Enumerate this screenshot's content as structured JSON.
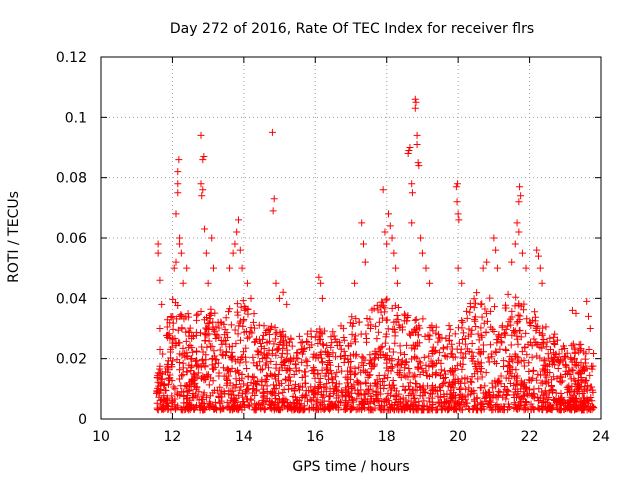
{
  "chart_data": {
    "type": "scatter",
    "title": "Day 272 of 2016, Rate Of TEC Index for receiver flrs",
    "xlabel": "GPS time / hours",
    "ylabel": "ROTI / TECUs",
    "xlim": [
      10,
      24
    ],
    "ylim": [
      0,
      0.12
    ],
    "x_ticks": [
      10,
      12,
      14,
      16,
      18,
      20,
      22,
      24
    ],
    "y_ticks": [
      0,
      0.02,
      0.04,
      0.06,
      0.08,
      0.1,
      0.12
    ],
    "x_tick_labels": [
      "10",
      "12",
      "14",
      "16",
      "18",
      "20",
      "22",
      "24"
    ],
    "y_tick_labels": [
      "0",
      "0.02",
      "0.04",
      "0.06",
      "0.08",
      "0.1",
      "0.12"
    ],
    "grid": true,
    "marker": "+",
    "series": [
      {
        "name": "ROTI",
        "color": "#ff0000",
        "x_range": [
          11.55,
          23.8
        ],
        "points": [
          [
            11.6,
            0.058
          ],
          [
            11.6,
            0.055
          ],
          [
            11.65,
            0.046
          ],
          [
            11.7,
            0.038
          ],
          [
            11.65,
            0.03
          ],
          [
            12.05,
            0.05
          ],
          [
            12.1,
            0.052
          ],
          [
            12.15,
            0.082
          ],
          [
            12.15,
            0.078
          ],
          [
            12.15,
            0.075
          ],
          [
            12.18,
            0.086
          ],
          [
            12.1,
            0.068
          ],
          [
            12.2,
            0.06
          ],
          [
            12.2,
            0.058
          ],
          [
            12.25,
            0.055
          ],
          [
            12.3,
            0.045
          ],
          [
            12.4,
            0.05
          ],
          [
            12.8,
            0.094
          ],
          [
            12.85,
            0.086
          ],
          [
            12.88,
            0.087
          ],
          [
            12.8,
            0.078
          ],
          [
            12.85,
            0.076
          ],
          [
            12.82,
            0.074
          ],
          [
            12.9,
            0.063
          ],
          [
            12.95,
            0.055
          ],
          [
            13.0,
            0.045
          ],
          [
            13.1,
            0.06
          ],
          [
            13.15,
            0.05
          ],
          [
            13.6,
            0.05
          ],
          [
            13.7,
            0.055
          ],
          [
            13.75,
            0.058
          ],
          [
            13.8,
            0.062
          ],
          [
            13.85,
            0.066
          ],
          [
            13.9,
            0.056
          ],
          [
            13.95,
            0.05
          ],
          [
            14.1,
            0.045
          ],
          [
            14.2,
            0.04
          ],
          [
            14.8,
            0.095
          ],
          [
            14.85,
            0.073
          ],
          [
            14.82,
            0.069
          ],
          [
            14.9,
            0.045
          ],
          [
            15.0,
            0.04
          ],
          [
            15.1,
            0.042
          ],
          [
            15.2,
            0.038
          ],
          [
            16.1,
            0.047
          ],
          [
            16.15,
            0.045
          ],
          [
            16.2,
            0.04
          ],
          [
            17.1,
            0.045
          ],
          [
            17.3,
            0.065
          ],
          [
            17.35,
            0.058
          ],
          [
            17.4,
            0.052
          ],
          [
            17.9,
            0.076
          ],
          [
            17.95,
            0.062
          ],
          [
            18.0,
            0.058
          ],
          [
            18.05,
            0.068
          ],
          [
            18.1,
            0.064
          ],
          [
            18.15,
            0.06
          ],
          [
            18.2,
            0.055
          ],
          [
            18.25,
            0.05
          ],
          [
            18.3,
            0.045
          ],
          [
            18.6,
            0.088
          ],
          [
            18.62,
            0.089
          ],
          [
            18.65,
            0.09
          ],
          [
            18.7,
            0.078
          ],
          [
            18.72,
            0.075
          ],
          [
            18.7,
            0.065
          ],
          [
            18.8,
            0.106
          ],
          [
            18.82,
            0.105
          ],
          [
            18.8,
            0.103
          ],
          [
            18.85,
            0.094
          ],
          [
            18.85,
            0.091
          ],
          [
            18.88,
            0.085
          ],
          [
            18.9,
            0.084
          ],
          [
            18.95,
            0.06
          ],
          [
            19.0,
            0.055
          ],
          [
            19.1,
            0.05
          ],
          [
            19.2,
            0.045
          ],
          [
            19.95,
            0.077
          ],
          [
            19.98,
            0.078
          ],
          [
            19.97,
            0.072
          ],
          [
            20.0,
            0.068
          ],
          [
            20.02,
            0.066
          ],
          [
            20.0,
            0.05
          ],
          [
            20.1,
            0.045
          ],
          [
            20.7,
            0.05
          ],
          [
            20.8,
            0.052
          ],
          [
            21.0,
            0.06
          ],
          [
            21.05,
            0.056
          ],
          [
            21.1,
            0.05
          ],
          [
            21.5,
            0.052
          ],
          [
            21.6,
            0.058
          ],
          [
            21.65,
            0.065
          ],
          [
            21.7,
            0.072
          ],
          [
            21.72,
            0.077
          ],
          [
            21.75,
            0.074
          ],
          [
            21.7,
            0.062
          ],
          [
            21.8,
            0.055
          ],
          [
            21.9,
            0.05
          ],
          [
            22.2,
            0.056
          ],
          [
            22.25,
            0.054
          ],
          [
            22.3,
            0.05
          ],
          [
            22.35,
            0.045
          ],
          [
            23.2,
            0.036
          ],
          [
            23.3,
            0.035
          ],
          [
            23.6,
            0.039
          ],
          [
            23.65,
            0.034
          ],
          [
            23.7,
            0.03
          ]
        ],
        "dense_band": {
          "description": "dense field of ROTI samples from 11.55 to 23.8 h",
          "base_min": 0.003,
          "base_max": 0.03,
          "hour_envelope": [
            [
              11.55,
              0.025
            ],
            [
              12.0,
              0.04
            ],
            [
              12.5,
              0.035
            ],
            [
              13.0,
              0.038
            ],
            [
              13.5,
              0.036
            ],
            [
              14.0,
              0.04
            ],
            [
              14.5,
              0.032
            ],
            [
              15.0,
              0.03
            ],
            [
              15.5,
              0.028
            ],
            [
              16.0,
              0.032
            ],
            [
              16.5,
              0.03
            ],
            [
              17.0,
              0.034
            ],
            [
              17.5,
              0.036
            ],
            [
              18.0,
              0.04
            ],
            [
              18.5,
              0.036
            ],
            [
              19.0,
              0.034
            ],
            [
              19.5,
              0.03
            ],
            [
              20.0,
              0.032
            ],
            [
              20.5,
              0.042
            ],
            [
              21.0,
              0.04
            ],
            [
              21.5,
              0.042
            ],
            [
              22.0,
              0.038
            ],
            [
              22.5,
              0.03
            ],
            [
              23.0,
              0.026
            ],
            [
              23.8,
              0.024
            ]
          ],
          "count": 2400
        }
      }
    ]
  }
}
